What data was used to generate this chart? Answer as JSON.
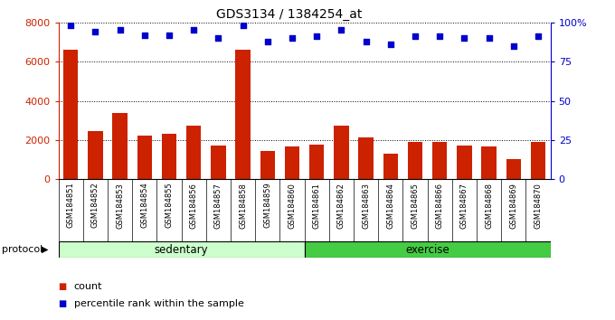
{
  "title": "GDS3134 / 1384254_at",
  "samples": [
    "GSM184851",
    "GSM184852",
    "GSM184853",
    "GSM184854",
    "GSM184855",
    "GSM184856",
    "GSM184857",
    "GSM184858",
    "GSM184859",
    "GSM184860",
    "GSM184861",
    "GSM184862",
    "GSM184863",
    "GSM184864",
    "GSM184865",
    "GSM184866",
    "GSM184867",
    "GSM184868",
    "GSM184869",
    "GSM184870"
  ],
  "counts": [
    6600,
    2450,
    3380,
    2230,
    2320,
    2730,
    1720,
    6620,
    1420,
    1650,
    1780,
    2750,
    2120,
    1290,
    1880,
    1910,
    1730,
    1680,
    1030,
    1900
  ],
  "percentiles": [
    98,
    94,
    95,
    92,
    92,
    95,
    90,
    98,
    88,
    90,
    91,
    95,
    88,
    86,
    91,
    91,
    90,
    90,
    85,
    91
  ],
  "sedentary_count": 10,
  "exercise_count": 10,
  "bar_color": "#cc2200",
  "dot_color": "#0000cc",
  "sedentary_color": "#ccffcc",
  "exercise_color": "#44cc44",
  "plot_bg": "#ffffff",
  "xlabel_bg": "#d8d8d8",
  "ylim_left": [
    0,
    8000
  ],
  "ylim_right": [
    0,
    100
  ],
  "yticks_left": [
    0,
    2000,
    4000,
    6000,
    8000
  ],
  "yticks_right": [
    0,
    25,
    50,
    75,
    100
  ],
  "legend_count_label": "count",
  "legend_percentile_label": "percentile rank within the sample",
  "xlabel_protocol": "protocol",
  "label_sedentary": "sedentary",
  "label_exercise": "exercise"
}
